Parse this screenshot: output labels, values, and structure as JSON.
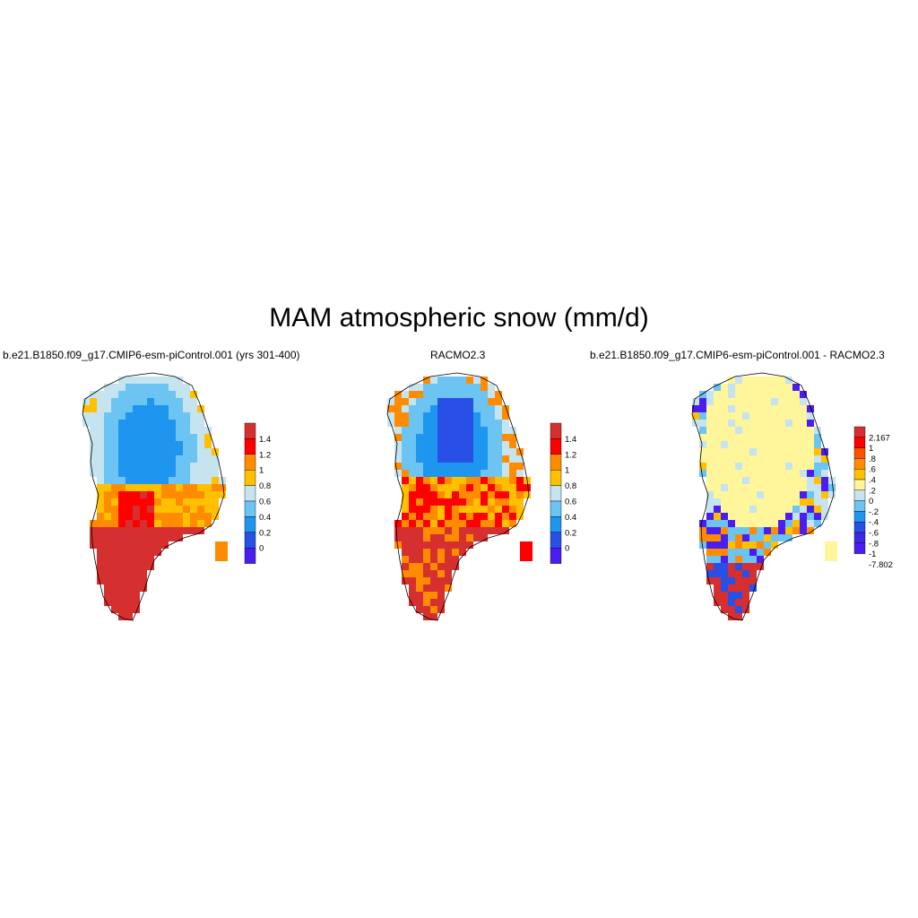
{
  "figure": {
    "title": "MAM atmospheric snow (mm/d)"
  },
  "panels": [
    {
      "id": "model",
      "title": "b.e21.B1850.f09_g17.CMIP6-esm-piControl.001 (yrs 301-400)",
      "colorbar": {
        "labels": [
          "1.4",
          "1.2",
          "1",
          "0.8",
          "0.6",
          "0.4",
          "0.2",
          "0"
        ],
        "colors": [
          "#d62f2f",
          "#ff0000",
          "#ff8c00",
          "#ffc000",
          "#c5e4f0",
          "#6cc4f2",
          "#1e96f0",
          "#2850e6",
          "#4a1ef0"
        ]
      }
    },
    {
      "id": "racmo",
      "title": "RACMO2.3",
      "colorbar": {
        "labels": [
          "1.4",
          "1.2",
          "1",
          "0.8",
          "0.6",
          "0.4",
          "0.2",
          "0"
        ],
        "colors": [
          "#d62f2f",
          "#ff0000",
          "#ff8c00",
          "#ffc000",
          "#c5e4f0",
          "#6cc4f2",
          "#1e96f0",
          "#2850e6",
          "#4a1ef0"
        ]
      }
    },
    {
      "id": "difference",
      "title": "b.e21.B1850.f09_g17.CMIP6-esm-piControl.001 - RACMO2.3",
      "colorbar": {
        "labels": [
          "2.167",
          "1",
          ".8",
          ".6",
          ".4",
          ".2",
          "0",
          "-.2",
          "-.4",
          "-.6",
          "-.8",
          "-1",
          "-7.802"
        ],
        "colors": [
          "#d62f2f",
          "#ff0000",
          "#ff5000",
          "#ff8c00",
          "#ffc000",
          "#fff59a",
          "#c5e4f0",
          "#6cc4f2",
          "#1e96f0",
          "#2850e6",
          "#3c28e6",
          "#4a1ef0"
        ]
      }
    }
  ]
}
